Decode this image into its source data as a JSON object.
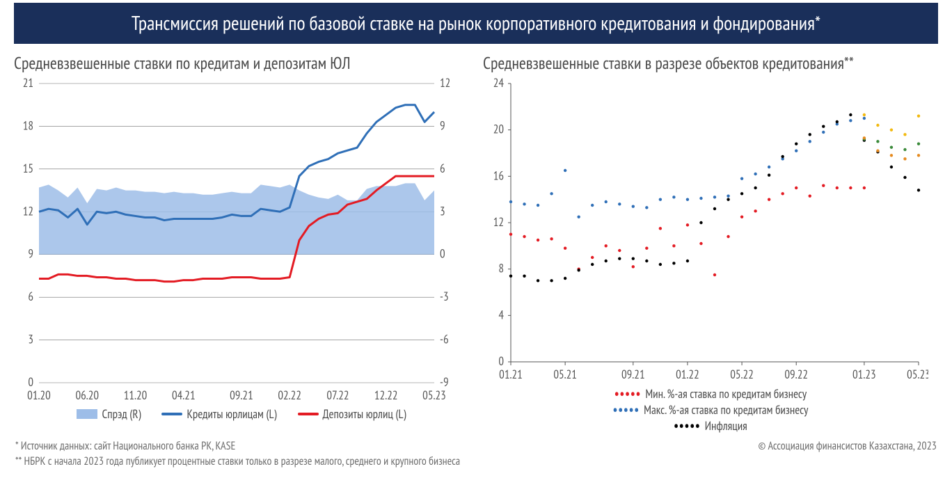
{
  "title": "Трансмиссия решений по базовой ставке на рынок корпоративного кредитования и фондирования*",
  "left_chart": {
    "type": "line+area-dual-axis",
    "subtitle": "Средневзвешенные ставки по кредитам и депозитам ЮЛ",
    "background_color": "#ffffff",
    "grid_color": "#555555",
    "grid_opacity": 0.85,
    "axis_fontsize": 17,
    "axis_color": "#555555",
    "line_width": 3,
    "x_labels": [
      "01.20",
      "06.20",
      "11.20",
      "04.21",
      "09.21",
      "02.22",
      "07.22",
      "12.22",
      "05.23"
    ],
    "y_left": {
      "min": 0,
      "max": 21,
      "step": 3
    },
    "y_right": {
      "min": -9,
      "max": 12,
      "step": 3
    },
    "series": {
      "credits": {
        "label": "Кредиты юрлицам (L)",
        "color": "#2f6fb7",
        "axis": "left",
        "values": [
          12.0,
          12.2,
          12.1,
          11.6,
          12.2,
          11.1,
          12.0,
          11.9,
          12.0,
          11.8,
          11.7,
          11.6,
          11.6,
          11.4,
          11.5,
          11.5,
          11.5,
          11.5,
          11.5,
          11.6,
          11.8,
          11.7,
          11.7,
          12.2,
          12.1,
          12.0,
          12.3,
          14.5,
          15.2,
          15.5,
          15.7,
          16.1,
          16.3,
          16.5,
          17.5,
          18.3,
          18.8,
          19.3,
          19.5,
          19.5,
          18.3,
          19.0
        ]
      },
      "deposits": {
        "label": "Депозиты юрлиц (L)",
        "color": "#e31b23",
        "axis": "left",
        "values": [
          7.3,
          7.3,
          7.6,
          7.6,
          7.5,
          7.5,
          7.4,
          7.4,
          7.3,
          7.3,
          7.2,
          7.2,
          7.2,
          7.1,
          7.1,
          7.2,
          7.2,
          7.3,
          7.3,
          7.3,
          7.4,
          7.4,
          7.4,
          7.3,
          7.3,
          7.3,
          7.4,
          10.0,
          11.0,
          11.5,
          11.8,
          11.9,
          12.5,
          12.7,
          12.9,
          13.5,
          14.0,
          14.5,
          14.5,
          14.5,
          14.5,
          14.5
        ]
      },
      "spread": {
        "label": "Спрэд (R)",
        "color": "#9dbde8",
        "axis": "right",
        "values": [
          4.7,
          4.9,
          4.5,
          4.0,
          4.7,
          3.6,
          4.6,
          4.5,
          4.7,
          4.5,
          4.5,
          4.4,
          4.4,
          4.3,
          4.4,
          4.3,
          4.3,
          4.2,
          4.2,
          4.3,
          4.4,
          4.3,
          4.3,
          4.9,
          4.8,
          4.7,
          4.9,
          4.5,
          4.2,
          4.0,
          3.9,
          4.2,
          3.8,
          3.8,
          4.6,
          4.8,
          4.8,
          4.8,
          5.0,
          5.0,
          3.8,
          4.5
        ]
      }
    },
    "legend": [
      {
        "kind": "area",
        "label": "Спрэд (R)"
      },
      {
        "kind": "line",
        "color": "#2f6fb7",
        "label": "Кредиты юрлицам (L)"
      },
      {
        "kind": "line",
        "color": "#e31b23",
        "label": "Депозиты юрлиц (L)"
      }
    ]
  },
  "right_chart": {
    "type": "dotted-line",
    "subtitle": "Средневзвешенные ставки в разрезе объектов кредитования**",
    "background_color": "#ffffff",
    "axis_fontsize": 17,
    "axis_color": "#555555",
    "dot_radius": 2.2,
    "x_labels": [
      "01.21",
      "05.21",
      "09.21",
      "01.22",
      "05.22",
      "09.22",
      "01.23",
      "05.23"
    ],
    "y": {
      "min": 0,
      "max": 24,
      "step": 4
    },
    "series": {
      "min_rate": {
        "label": "Мин. %-ая ставка по кредитам бизнесу",
        "color": "#e31b23",
        "values": [
          11.0,
          10.8,
          10.5,
          10.6,
          9.8,
          8.0,
          9.0,
          10.0,
          9.6,
          8.2,
          9.8,
          11.5,
          10.0,
          11.8,
          10.2,
          7.5,
          10.8,
          12.5,
          13.0,
          14.0,
          14.5,
          15.0,
          14.3,
          15.2,
          15.0,
          15.0,
          15.0,
          null,
          null,
          null,
          null
        ]
      },
      "max_rate": {
        "label": "Макс. %-ая ставка по кредитам бизнесу",
        "color": "#2f6fb7",
        "values": [
          13.8,
          13.6,
          13.5,
          14.5,
          16.5,
          12.5,
          13.5,
          13.8,
          13.6,
          13.4,
          13.3,
          14.0,
          14.2,
          14.0,
          14.1,
          14.2,
          14.3,
          15.8,
          16.2,
          16.8,
          17.5,
          18.2,
          19.0,
          19.8,
          20.5,
          20.8,
          21.0,
          null,
          null,
          null,
          null
        ]
      },
      "inflation": {
        "label": "Инфляция",
        "color": "#000000",
        "values": [
          7.4,
          7.4,
          7.0,
          7.0,
          7.2,
          7.9,
          8.4,
          8.7,
          8.9,
          8.9,
          8.7,
          8.4,
          8.5,
          8.7,
          12.0,
          13.2,
          14.0,
          14.5,
          15.0,
          16.1,
          17.7,
          18.8,
          19.6,
          20.3,
          20.7,
          21.3,
          19.1,
          18.1,
          16.8,
          15.9,
          14.8
        ]
      },
      "extra_gold": {
        "label": "",
        "color": "#f2b90f",
        "values": [
          null,
          null,
          null,
          null,
          null,
          null,
          null,
          null,
          null,
          null,
          null,
          null,
          null,
          null,
          null,
          null,
          null,
          null,
          null,
          null,
          null,
          null,
          null,
          null,
          null,
          null,
          21.3,
          20.4,
          20.0,
          19.6,
          21.2
        ]
      },
      "extra_green": {
        "label": "",
        "color": "#3a8a3a",
        "values": [
          null,
          null,
          null,
          null,
          null,
          null,
          null,
          null,
          null,
          null,
          null,
          null,
          null,
          null,
          null,
          null,
          null,
          null,
          null,
          null,
          null,
          null,
          null,
          null,
          null,
          null,
          19.2,
          19.0,
          18.5,
          18.3,
          18.8
        ]
      },
      "extra_orange": {
        "label": "",
        "color": "#e58a1f",
        "values": [
          null,
          null,
          null,
          null,
          null,
          null,
          null,
          null,
          null,
          null,
          null,
          null,
          null,
          null,
          null,
          null,
          null,
          null,
          null,
          null,
          null,
          null,
          null,
          null,
          null,
          null,
          19.3,
          18.2,
          17.8,
          17.5,
          17.8
        ]
      }
    },
    "legend": [
      {
        "kind": "dots",
        "color": "#e31b23",
        "label": "Мин. %-ая ставка по кредитам бизнесу"
      },
      {
        "kind": "dots",
        "color": "#2f6fb7",
        "label": "Макс. %-ая ставка по кредитам бизнесу"
      },
      {
        "kind": "dots",
        "color": "#000000",
        "label": "Инфляция"
      }
    ]
  },
  "footnotes": {
    "source": "* Источник данных: сайт Национального банка РК, KASE",
    "note2": "** НБРК с начала 2023 года публикует процентные ставки только в разрезе малого, среднего и крупного бизнеса",
    "copyright": "© Ассоциация финансистов Казахстана, 2023"
  }
}
